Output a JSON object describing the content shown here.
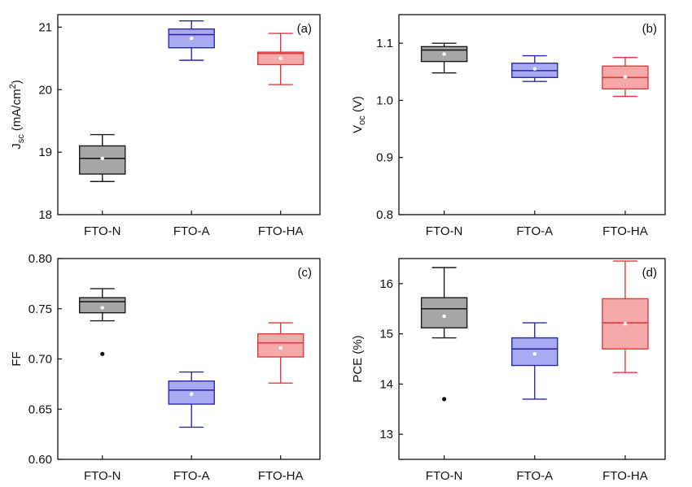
{
  "figure": {
    "panels": [
      "(a)",
      "(b)",
      "(c)",
      "(d)"
    ]
  },
  "chart_data": [
    {
      "type": "box",
      "panel_label": "(a)",
      "ylabel": "J_sc (mA/cm^2)",
      "ylabel_main": "J",
      "ylabel_sub": "sc",
      "ylabel_rest": " (mA/cm",
      "ylabel_sup": "2",
      "ylabel_end": ")",
      "categories": [
        "FTO-N",
        "FTO-A",
        "FTO-HA"
      ],
      "ylim": [
        18,
        21.2
      ],
      "yticks": [
        18,
        19,
        20,
        21
      ],
      "ytick_labels": [
        "18",
        "19",
        "20",
        "21"
      ],
      "boxes": [
        {
          "name": "FTO-N",
          "whisker_low": 18.53,
          "q1": 18.65,
          "median": 18.9,
          "q3": 19.1,
          "whisker_high": 19.28,
          "mean": 18.9,
          "outliers": []
        },
        {
          "name": "FTO-A",
          "whisker_low": 20.47,
          "q1": 20.67,
          "median": 20.88,
          "q3": 20.97,
          "whisker_high": 21.1,
          "mean": 20.82,
          "outliers": []
        },
        {
          "name": "FTO-HA",
          "whisker_low": 20.08,
          "q1": 20.4,
          "median": 20.58,
          "q3": 20.6,
          "whisker_high": 20.9,
          "mean": 20.5,
          "outliers": []
        }
      ]
    },
    {
      "type": "box",
      "panel_label": "(b)",
      "ylabel": "V_oc (V)",
      "ylabel_main": "V",
      "ylabel_sub": "oc",
      "ylabel_rest": " (V)",
      "ylabel_sup": "",
      "ylabel_end": "",
      "categories": [
        "FTO-N",
        "FTO-A",
        "FTO-HA"
      ],
      "ylim": [
        0.8,
        1.15
      ],
      "yticks": [
        0.8,
        0.9,
        1.0,
        1.1
      ],
      "ytick_labels": [
        "0.8",
        "0.9",
        "1.0",
        "1.1"
      ],
      "boxes": [
        {
          "name": "FTO-N",
          "whisker_low": 1.048,
          "q1": 1.068,
          "median": 1.088,
          "q3": 1.094,
          "whisker_high": 1.1,
          "mean": 1.081,
          "outliers": []
        },
        {
          "name": "FTO-A",
          "whisker_low": 1.033,
          "q1": 1.04,
          "median": 1.052,
          "q3": 1.065,
          "whisker_high": 1.078,
          "mean": 1.055,
          "outliers": []
        },
        {
          "name": "FTO-HA",
          "whisker_low": 1.007,
          "q1": 1.02,
          "median": 1.04,
          "q3": 1.06,
          "whisker_high": 1.075,
          "mean": 1.041,
          "outliers": []
        }
      ]
    },
    {
      "type": "box",
      "panel_label": "(c)",
      "ylabel": "FF",
      "ylabel_main": "FF",
      "ylabel_sub": "",
      "ylabel_rest": "",
      "ylabel_sup": "",
      "ylabel_end": "",
      "categories": [
        "FTO-N",
        "FTO-A",
        "FTO-HA"
      ],
      "ylim": [
        0.6,
        0.8
      ],
      "yticks": [
        0.6,
        0.65,
        0.7,
        0.75,
        0.8
      ],
      "ytick_labels": [
        "0.60",
        "0.65",
        "0.70",
        "0.75",
        "0.80"
      ],
      "boxes": [
        {
          "name": "FTO-N",
          "whisker_low": 0.738,
          "q1": 0.746,
          "median": 0.757,
          "q3": 0.761,
          "whisker_high": 0.77,
          "mean": 0.751,
          "outliers": [
            0.705
          ]
        },
        {
          "name": "FTO-A",
          "whisker_low": 0.632,
          "q1": 0.655,
          "median": 0.669,
          "q3": 0.678,
          "whisker_high": 0.687,
          "mean": 0.665,
          "outliers": []
        },
        {
          "name": "FTO-HA",
          "whisker_low": 0.676,
          "q1": 0.702,
          "median": 0.716,
          "q3": 0.725,
          "whisker_high": 0.736,
          "mean": 0.711,
          "outliers": []
        }
      ]
    },
    {
      "type": "box",
      "panel_label": "(d)",
      "ylabel": "PCE (%)",
      "ylabel_main": "PCE (%)",
      "ylabel_sub": "",
      "ylabel_rest": "",
      "ylabel_sup": "",
      "ylabel_end": "",
      "categories": [
        "FTO-N",
        "FTO-A",
        "FTO-HA"
      ],
      "ylim": [
        12.5,
        16.5
      ],
      "yticks": [
        13,
        14,
        15,
        16
      ],
      "ytick_labels": [
        "13",
        "14",
        "15",
        "16"
      ],
      "boxes": [
        {
          "name": "FTO-N",
          "whisker_low": 14.92,
          "q1": 15.12,
          "median": 15.5,
          "q3": 15.72,
          "whisker_high": 16.32,
          "mean": 15.35,
          "outliers": [
            13.7
          ]
        },
        {
          "name": "FTO-A",
          "whisker_low": 13.7,
          "q1": 14.37,
          "median": 14.7,
          "q3": 14.92,
          "whisker_high": 15.22,
          "mean": 14.6,
          "outliers": []
        },
        {
          "name": "FTO-HA",
          "whisker_low": 14.23,
          "q1": 14.7,
          "median": 15.22,
          "q3": 15.7,
          "whisker_high": 16.45,
          "mean": 15.2,
          "outliers": []
        }
      ]
    }
  ],
  "styles": {
    "FTO-N": {
      "fill": "#a6a6a6",
      "stroke": "#1a1a1a"
    },
    "FTO-A": {
      "fill": "#aaaaf2",
      "stroke": "#2a2aa8"
    },
    "FTO-HA": {
      "fill": "#f5a9a9",
      "stroke": "#e23a3a"
    }
  }
}
